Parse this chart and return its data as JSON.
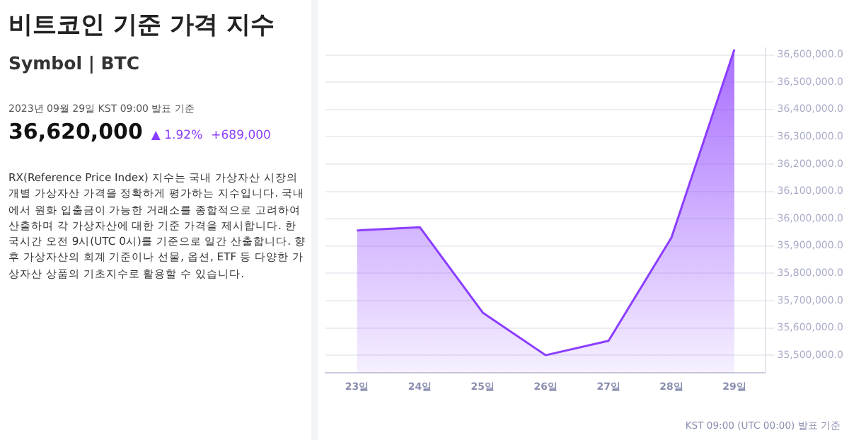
{
  "chart_data": {
    "type": "area",
    "title": "비트코인 기준 가격 지수",
    "subtitle": "Symbol | BTC",
    "annotations": [
      "2023년 09월 29일 KST 09:00 발표 기준",
      "36,620,000",
      "▲ 1.92%",
      "+689,000",
      "RX(Reference Price Index) 지수는 국내 가상자산 시장의 개별 가상자산 가격을 정확하게 평가하는 지수입니다. 국내에서 원화 입출금이 가능한 거래소를 종합적으로 고려하여 산출하며 각 가상자산에 대한 기준 가격을 제시합니다. 한국시간 오전 9시(UTC 0시)를 기준으로 일간 산출합니다. 향후 가상자산의 회계 기준이나 선물, 옵션, ETF 등 다양한 가상자산 상품의 기초지수로 활용할 수 있습니다.",
      "KST 09:00 (UTC 00:00) 발표 기준"
    ],
    "categories": [
      "23일",
      "24일",
      "25일",
      "26일",
      "27일",
      "28일",
      "29일"
    ],
    "series": [
      {
        "color": "#8b3dff",
        "values": [
          35957000,
          35969000,
          35656000,
          35500000,
          35553000,
          35931000,
          36620000
        ]
      }
    ],
    "ylim": [
      35435000,
      36625000
    ],
    "yticks": [
      {
        "value": 35500000,
        "label": "35,500,000.0"
      },
      {
        "value": 35600000,
        "label": "35,600,000.0"
      },
      {
        "value": 35700000,
        "label": "35,700,000.0"
      },
      {
        "value": 35800000,
        "label": "35,800,000.0"
      },
      {
        "value": 35900000,
        "label": "35,900,000.0"
      },
      {
        "value": 36000000,
        "label": "36,000,000.0"
      },
      {
        "value": 36100000,
        "label": "36,100,000.0"
      },
      {
        "value": 36200000,
        "label": "36,200,000.0"
      },
      {
        "value": 36300000,
        "label": "36,300,000.0"
      },
      {
        "value": 36400000,
        "label": "36,400,000.0"
      },
      {
        "value": 36500000,
        "label": "36,500,000.0"
      },
      {
        "value": 36600000,
        "label": "36,600,000.0"
      }
    ],
    "grid": "y",
    "marker": "none"
  }
}
